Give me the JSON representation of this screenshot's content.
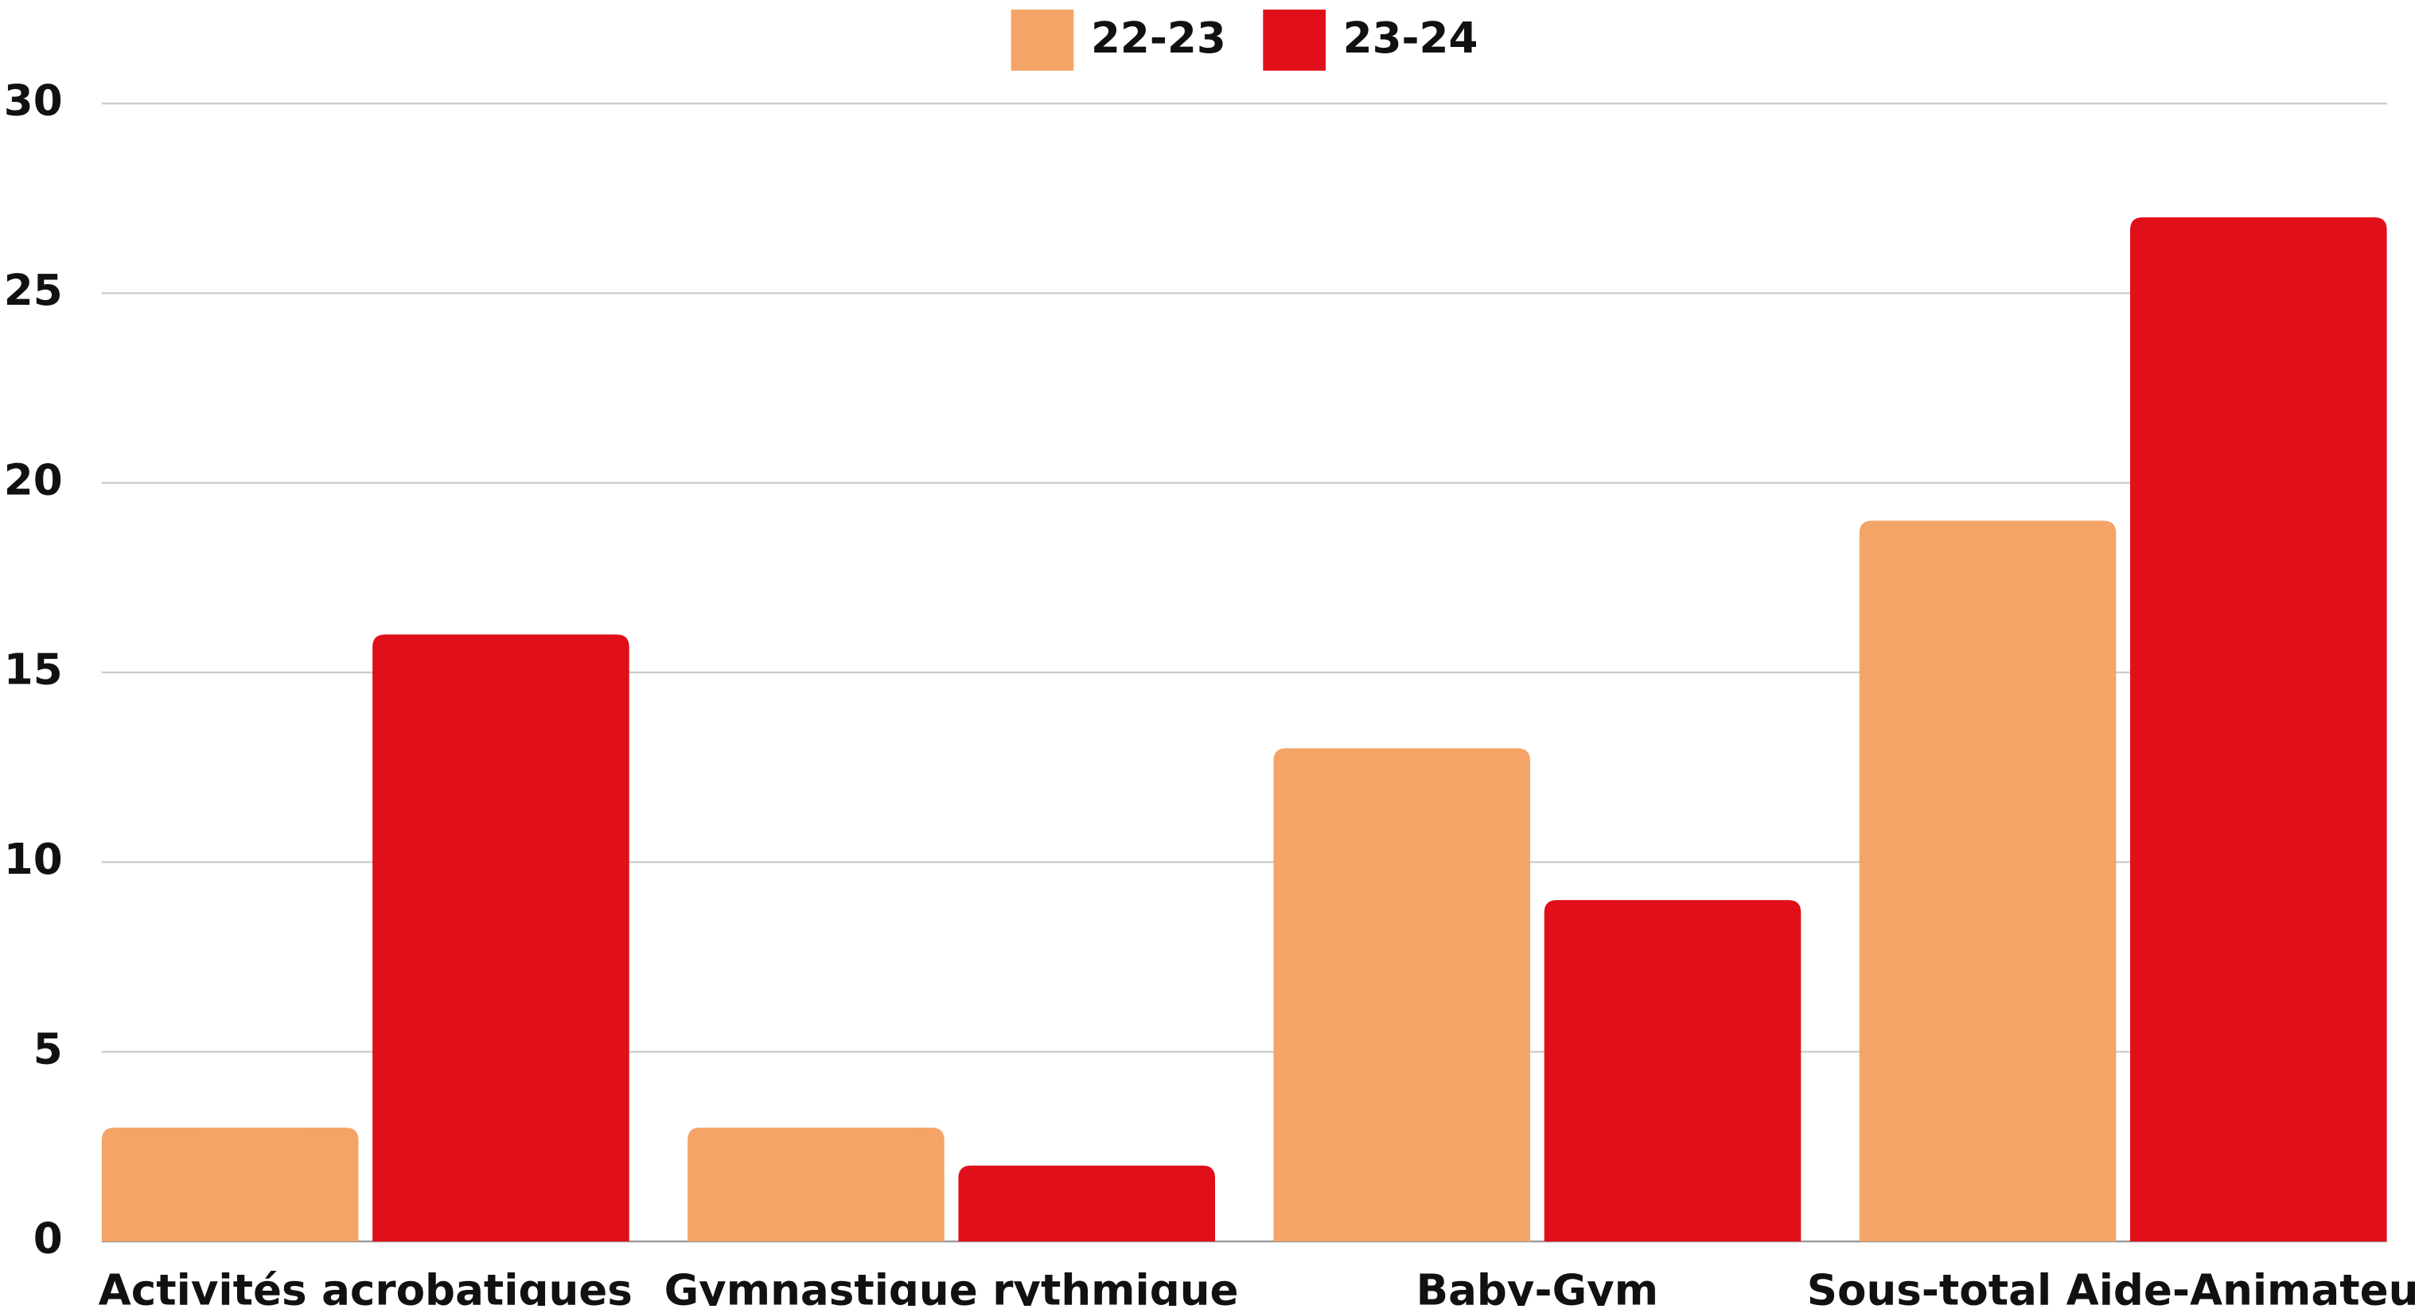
{
  "chart_data": {
    "type": "bar",
    "categories": [
      "Activités acrobatiques",
      "Gymnastique rythmique",
      "Baby-Gym",
      "Sous-total Aide-Animateur"
    ],
    "series": [
      {
        "name": "22-23",
        "color": "#f4a466",
        "values": [
          3,
          3,
          13,
          19
        ]
      },
      {
        "name": "23-24",
        "color": "#e10f1a",
        "values": [
          16,
          2,
          9,
          27
        ]
      }
    ],
    "ylim": [
      0,
      30
    ],
    "yticks": [
      0,
      5,
      10,
      15,
      20,
      25,
      30
    ],
    "grid": true,
    "legend": "top"
  }
}
